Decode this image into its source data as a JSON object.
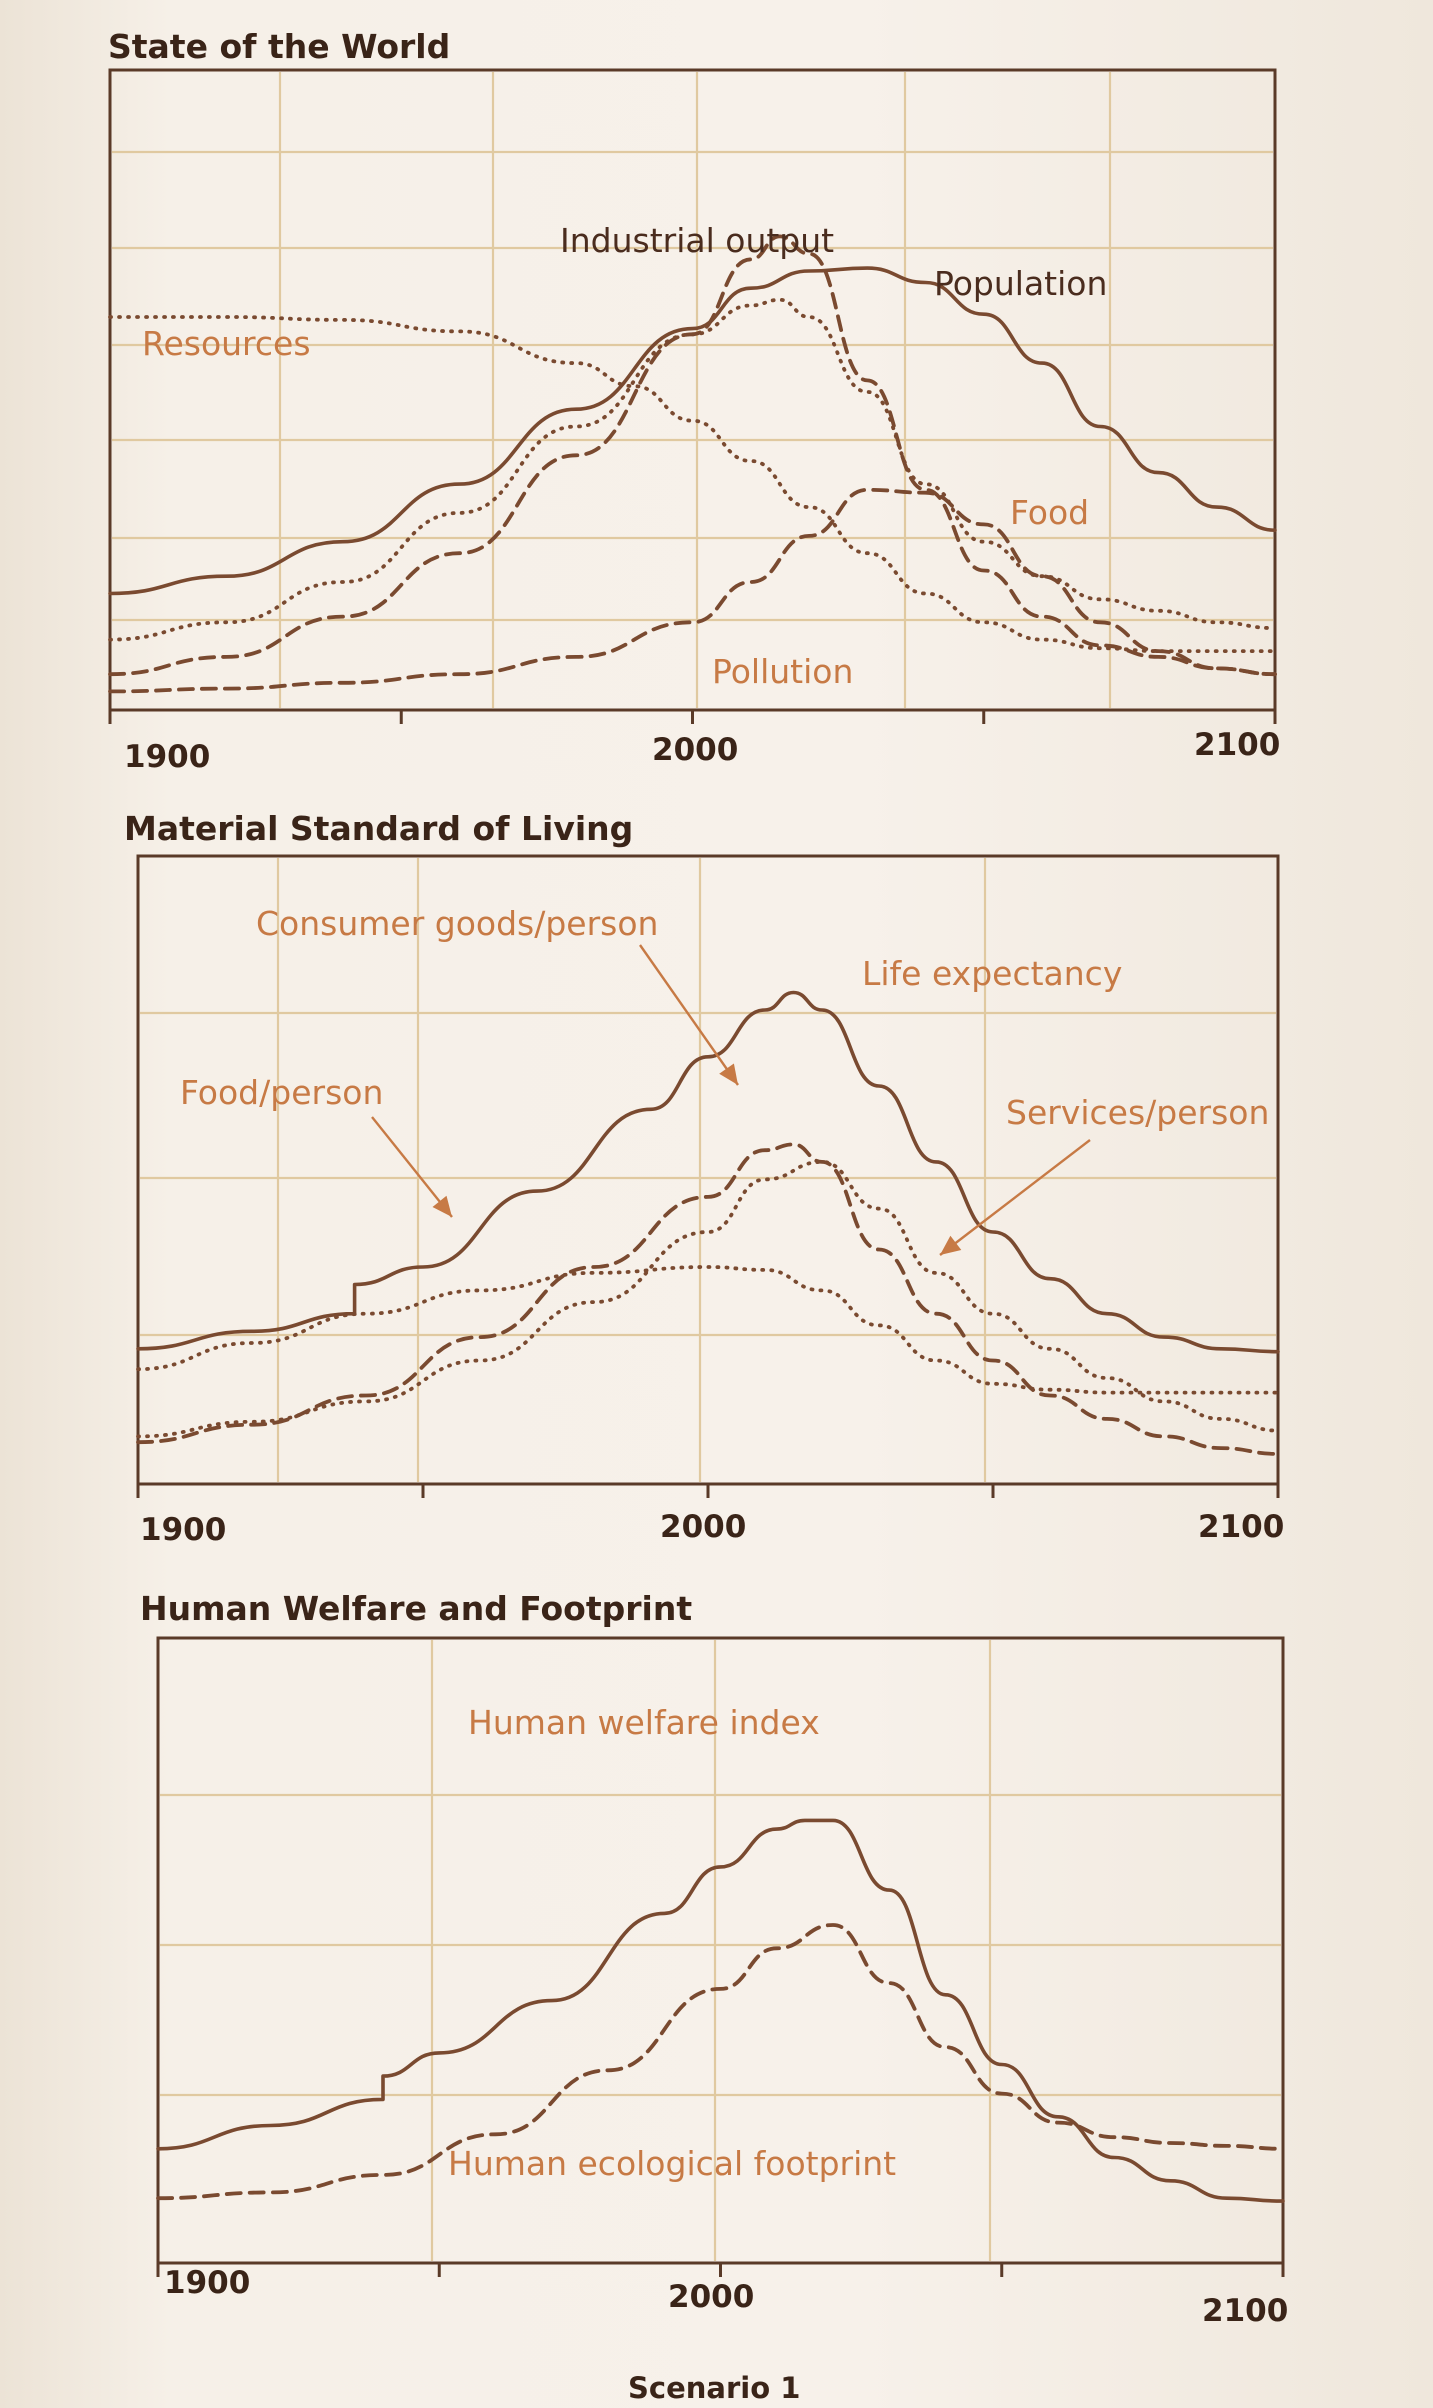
{
  "caption": "Scenario 1",
  "colors": {
    "line": "#7a4a30",
    "label": "#c77a45",
    "label_dark": "#4a2c1e",
    "grid": "#e0c9a0"
  },
  "chart_data": [
    {
      "type": "line",
      "title": "State of the World",
      "x_ticks": [
        "1900",
        "2000",
        "2100"
      ],
      "xlim": [
        1900,
        2100
      ],
      "ylim": [
        0,
        1
      ],
      "grid": true,
      "series": [
        {
          "name": "Resources",
          "style": "dotted",
          "points": [
            [
              1900,
              0.66
            ],
            [
              1920,
              0.66
            ],
            [
              1940,
              0.655
            ],
            [
              1960,
              0.635
            ],
            [
              1980,
              0.58
            ],
            [
              1990,
              0.54
            ],
            [
              2000,
              0.48
            ],
            [
              2010,
              0.41
            ],
            [
              2020,
              0.33
            ],
            [
              2030,
              0.25
            ],
            [
              2040,
              0.18
            ],
            [
              2050,
              0.13
            ],
            [
              2060,
              0.1
            ],
            [
              2070,
              0.085
            ],
            [
              2080,
              0.08
            ],
            [
              2090,
              0.08
            ],
            [
              2100,
              0.08
            ]
          ]
        },
        {
          "name": "Population",
          "style": "solid",
          "points": [
            [
              1900,
              0.18
            ],
            [
              1920,
              0.21
            ],
            [
              1940,
              0.27
            ],
            [
              1960,
              0.37
            ],
            [
              1980,
              0.5
            ],
            [
              2000,
              0.64
            ],
            [
              2010,
              0.71
            ],
            [
              2020,
              0.74
            ],
            [
              2030,
              0.745
            ],
            [
              2040,
              0.72
            ],
            [
              2050,
              0.665
            ],
            [
              2060,
              0.58
            ],
            [
              2070,
              0.47
            ],
            [
              2080,
              0.39
            ],
            [
              2090,
              0.33
            ],
            [
              2100,
              0.29
            ]
          ]
        },
        {
          "name": "Industrial output",
          "style": "dashed",
          "points": [
            [
              1900,
              0.04
            ],
            [
              1920,
              0.07
            ],
            [
              1940,
              0.14
            ],
            [
              1960,
              0.25
            ],
            [
              1980,
              0.42
            ],
            [
              2000,
              0.63
            ],
            [
              2010,
              0.76
            ],
            [
              2015,
              0.8
            ],
            [
              2020,
              0.77
            ],
            [
              2030,
              0.55
            ],
            [
              2040,
              0.36
            ],
            [
              2050,
              0.22
            ],
            [
              2060,
              0.14
            ],
            [
              2070,
              0.09
            ],
            [
              2080,
              0.07
            ],
            [
              2090,
              0.05
            ],
            [
              2100,
              0.04
            ]
          ]
        },
        {
          "name": "Food",
          "style": "dotted",
          "points": [
            [
              1900,
              0.1
            ],
            [
              1920,
              0.13
            ],
            [
              1940,
              0.2
            ],
            [
              1960,
              0.32
            ],
            [
              1980,
              0.47
            ],
            [
              2000,
              0.63
            ],
            [
              2010,
              0.68
            ],
            [
              2015,
              0.69
            ],
            [
              2020,
              0.66
            ],
            [
              2030,
              0.53
            ],
            [
              2040,
              0.37
            ],
            [
              2050,
              0.27
            ],
            [
              2060,
              0.21
            ],
            [
              2070,
              0.17
            ],
            [
              2080,
              0.15
            ],
            [
              2090,
              0.13
            ],
            [
              2100,
              0.12
            ]
          ]
        },
        {
          "name": "Pollution",
          "style": "dashed",
          "points": [
            [
              1900,
              0.01
            ],
            [
              1920,
              0.015
            ],
            [
              1940,
              0.025
            ],
            [
              1960,
              0.04
            ],
            [
              1980,
              0.07
            ],
            [
              2000,
              0.13
            ],
            [
              2010,
              0.2
            ],
            [
              2020,
              0.28
            ],
            [
              2030,
              0.36
            ],
            [
              2040,
              0.355
            ],
            [
              2050,
              0.3
            ],
            [
              2060,
              0.21
            ],
            [
              2070,
              0.13
            ],
            [
              2080,
              0.08
            ],
            [
              2090,
              0.05
            ],
            [
              2100,
              0.04
            ]
          ]
        }
      ],
      "annotations": [
        "Industrial output",
        "Population",
        "Resources",
        "Food",
        "Pollution"
      ]
    },
    {
      "type": "line",
      "title": "Material Standard of Living",
      "x_ticks": [
        "1900",
        "2000",
        "2100"
      ],
      "xlim": [
        1900,
        2100
      ],
      "ylim": [
        0,
        1
      ],
      "grid": true,
      "series": [
        {
          "name": "Life expectancy",
          "style": "solid",
          "points": [
            [
              1900,
              0.21
            ],
            [
              1920,
              0.24
            ],
            [
              1938,
              0.27
            ],
            [
              1938,
              0.32
            ],
            [
              1950,
              0.35
            ],
            [
              1970,
              0.48
            ],
            [
              1990,
              0.62
            ],
            [
              2000,
              0.71
            ],
            [
              2010,
              0.79
            ],
            [
              2015,
              0.82
            ],
            [
              2020,
              0.79
            ],
            [
              2030,
              0.66
            ],
            [
              2040,
              0.53
            ],
            [
              2050,
              0.41
            ],
            [
              2060,
              0.33
            ],
            [
              2070,
              0.27
            ],
            [
              2080,
              0.23
            ],
            [
              2090,
              0.21
            ],
            [
              2100,
              0.205
            ]
          ]
        },
        {
          "name": "Food/person",
          "style": "dotted",
          "points": [
            [
              1900,
              0.175
            ],
            [
              1920,
              0.22
            ],
            [
              1940,
              0.27
            ],
            [
              1960,
              0.31
            ],
            [
              1980,
              0.34
            ],
            [
              2000,
              0.35
            ],
            [
              2010,
              0.345
            ],
            [
              2020,
              0.31
            ],
            [
              2030,
              0.25
            ],
            [
              2040,
              0.19
            ],
            [
              2050,
              0.15
            ],
            [
              2060,
              0.14
            ],
            [
              2070,
              0.135
            ],
            [
              2080,
              0.135
            ],
            [
              2090,
              0.135
            ],
            [
              2100,
              0.135
            ]
          ]
        },
        {
          "name": "Consumer goods/person",
          "style": "dashed",
          "points": [
            [
              1900,
              0.05
            ],
            [
              1920,
              0.08
            ],
            [
              1940,
              0.13
            ],
            [
              1960,
              0.23
            ],
            [
              1980,
              0.35
            ],
            [
              2000,
              0.47
            ],
            [
              2010,
              0.55
            ],
            [
              2015,
              0.56
            ],
            [
              2020,
              0.53
            ],
            [
              2030,
              0.38
            ],
            [
              2040,
              0.27
            ],
            [
              2050,
              0.19
            ],
            [
              2060,
              0.13
            ],
            [
              2070,
              0.09
            ],
            [
              2080,
              0.06
            ],
            [
              2090,
              0.04
            ],
            [
              2100,
              0.03
            ]
          ]
        },
        {
          "name": "Services/person",
          "style": "dotted",
          "points": [
            [
              1900,
              0.06
            ],
            [
              1920,
              0.085
            ],
            [
              1940,
              0.12
            ],
            [
              1960,
              0.19
            ],
            [
              1980,
              0.29
            ],
            [
              2000,
              0.41
            ],
            [
              2010,
              0.5
            ],
            [
              2020,
              0.53
            ],
            [
              2030,
              0.45
            ],
            [
              2040,
              0.34
            ],
            [
              2050,
              0.27
            ],
            [
              2060,
              0.21
            ],
            [
              2070,
              0.16
            ],
            [
              2080,
              0.12
            ],
            [
              2090,
              0.09
            ],
            [
              2100,
              0.07
            ]
          ]
        }
      ],
      "annotations": [
        "Consumer goods/person",
        "Life expectancy",
        "Food/person",
        "Services/person"
      ]
    },
    {
      "type": "line",
      "title": "Human Welfare and Footprint",
      "x_ticks": [
        "1900",
        "2000",
        "2100"
      ],
      "xlim": [
        1900,
        2100
      ],
      "ylim": [
        0,
        1
      ],
      "grid": true,
      "series": [
        {
          "name": "Human welfare index",
          "style": "solid",
          "points": [
            [
              1900,
              0.175
            ],
            [
              1920,
              0.215
            ],
            [
              1940,
              0.26
            ],
            [
              1940,
              0.3
            ],
            [
              1950,
              0.34
            ],
            [
              1970,
              0.43
            ],
            [
              1990,
              0.58
            ],
            [
              2000,
              0.66
            ],
            [
              2010,
              0.725
            ],
            [
              2015,
              0.74
            ],
            [
              2020,
              0.74
            ],
            [
              2030,
              0.62
            ],
            [
              2040,
              0.44
            ],
            [
              2050,
              0.32
            ],
            [
              2060,
              0.23
            ],
            [
              2070,
              0.16
            ],
            [
              2080,
              0.12
            ],
            [
              2090,
              0.09
            ],
            [
              2100,
              0.085
            ]
          ]
        },
        {
          "name": "Human ecological footprint",
          "style": "dashed",
          "points": [
            [
              1900,
              0.09
            ],
            [
              1920,
              0.1
            ],
            [
              1940,
              0.13
            ],
            [
              1960,
              0.2
            ],
            [
              1980,
              0.31
            ],
            [
              2000,
              0.45
            ],
            [
              2010,
              0.52
            ],
            [
              2020,
              0.56
            ],
            [
              2030,
              0.46
            ],
            [
              2040,
              0.35
            ],
            [
              2050,
              0.27
            ],
            [
              2060,
              0.22
            ],
            [
              2070,
              0.195
            ],
            [
              2080,
              0.185
            ],
            [
              2090,
              0.18
            ],
            [
              2100,
              0.175
            ]
          ]
        }
      ],
      "annotations": [
        "Human welfare index",
        "Human ecological footprint"
      ]
    }
  ]
}
